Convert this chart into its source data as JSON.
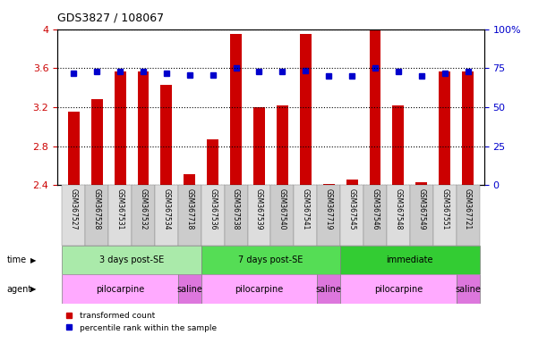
{
  "title": "GDS3827 / 108067",
  "samples": [
    "GSM367527",
    "GSM367528",
    "GSM367531",
    "GSM367532",
    "GSM367534",
    "GSM367718",
    "GSM367536",
    "GSM367538",
    "GSM367539",
    "GSM367540",
    "GSM367541",
    "GSM367719",
    "GSM367545",
    "GSM367546",
    "GSM367548",
    "GSM367549",
    "GSM367551",
    "GSM367721"
  ],
  "bar_values": [
    3.15,
    3.28,
    3.57,
    3.57,
    3.43,
    2.51,
    2.87,
    3.95,
    3.2,
    3.22,
    3.95,
    2.41,
    2.46,
    4.0,
    3.22,
    2.43,
    3.57,
    3.57
  ],
  "dot_values": [
    3.55,
    3.57,
    3.57,
    3.57,
    3.55,
    3.53,
    3.53,
    3.6,
    3.57,
    3.57,
    3.58,
    3.52,
    3.52,
    3.6,
    3.57,
    3.52,
    3.55,
    3.57
  ],
  "ylim": [
    2.4,
    4.0
  ],
  "yticks": [
    2.4,
    2.8,
    3.2,
    3.6,
    4.0
  ],
  "ytick_labels": [
    "2.4",
    "2.8",
    "3.2",
    "3.6",
    "4"
  ],
  "right_yticks": [
    0,
    25,
    50,
    75,
    100
  ],
  "right_ytick_labels": [
    "0",
    "25",
    "50",
    "75",
    "100%"
  ],
  "bar_color": "#cc0000",
  "dot_color": "#0000cc",
  "time_groups": [
    {
      "label": "3 days post-SE",
      "start": 0,
      "end": 5,
      "color": "#aaeaaa"
    },
    {
      "label": "7 days post-SE",
      "start": 6,
      "end": 11,
      "color": "#55dd55"
    },
    {
      "label": "immediate",
      "start": 12,
      "end": 17,
      "color": "#33cc33"
    }
  ],
  "agent_groups": [
    {
      "label": "pilocarpine",
      "start": 0,
      "end": 4,
      "color": "#ffaaff"
    },
    {
      "label": "saline",
      "start": 5,
      "end": 5,
      "color": "#dd77dd"
    },
    {
      "label": "pilocarpine",
      "start": 6,
      "end": 10,
      "color": "#ffaaff"
    },
    {
      "label": "saline",
      "start": 11,
      "end": 11,
      "color": "#dd77dd"
    },
    {
      "label": "pilocarpine",
      "start": 12,
      "end": 16,
      "color": "#ffaaff"
    },
    {
      "label": "saline",
      "start": 17,
      "end": 17,
      "color": "#dd77dd"
    }
  ],
  "legend_items": [
    {
      "label": "transformed count",
      "color": "#cc0000"
    },
    {
      "label": "percentile rank within the sample",
      "color": "#0000cc"
    }
  ]
}
